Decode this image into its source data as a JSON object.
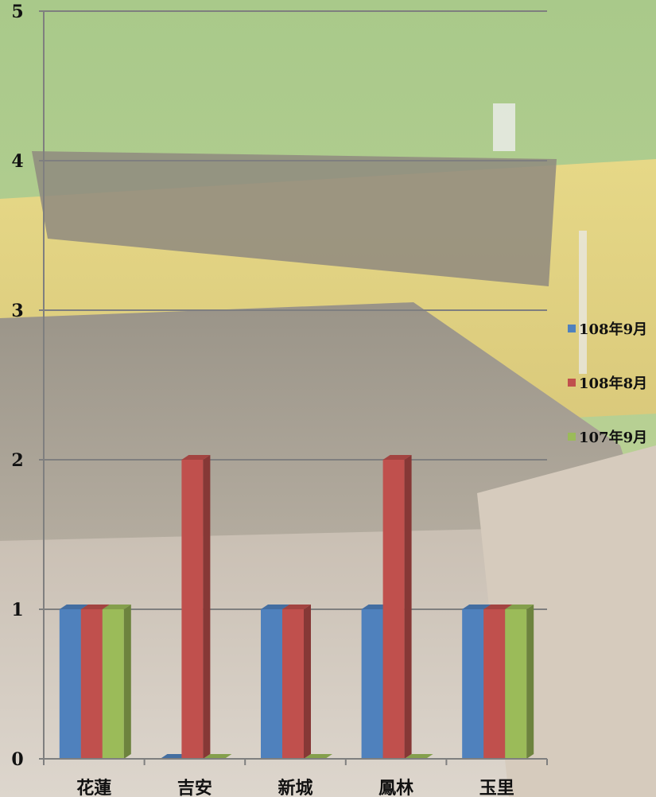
{
  "chart_data": {
    "type": "bar",
    "categories": [
      "花蓮",
      "吉安",
      "新城",
      "鳳林",
      "玉里"
    ],
    "series": [
      {
        "name": "108年9月",
        "values": [
          1,
          0,
          1,
          1,
          1
        ],
        "color": "#4F81BD"
      },
      {
        "name": "108年8月",
        "values": [
          1,
          2,
          1,
          2,
          1
        ],
        "color": "#C0504D"
      },
      {
        "name": "107年9月",
        "values": [
          1,
          0,
          0,
          0,
          1
        ],
        "color": "#9BBB59"
      }
    ],
    "yticks": [
      "0",
      "1",
      "2",
      "3",
      "4",
      "5"
    ],
    "ylim": [
      0,
      5
    ],
    "grid": true,
    "legend": "right",
    "title": "",
    "xlabel": "",
    "ylabel": ""
  }
}
